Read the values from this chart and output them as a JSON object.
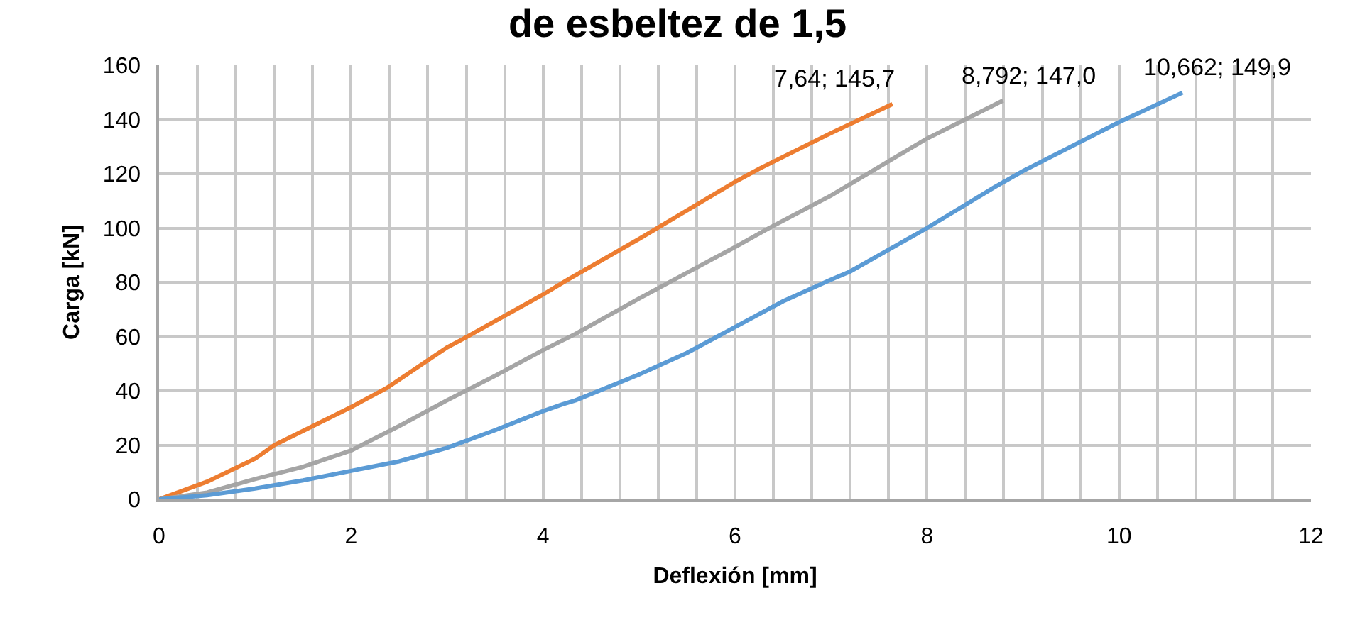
{
  "chart_data": {
    "type": "line",
    "title": "de esbeltez de 1,5",
    "xlabel": "Deflexión [mm]",
    "ylabel": "Carga [kN]",
    "xlim": [
      0,
      12
    ],
    "xticks": [
      0,
      2,
      4,
      6,
      8,
      10,
      12
    ],
    "ylim": [
      0,
      160
    ],
    "yticks": [
      0,
      20,
      40,
      60,
      80,
      100,
      120,
      140,
      160
    ],
    "grid": true,
    "marker": "none",
    "line_style": "solid",
    "series": [
      {
        "color": "#ed7d31",
        "x": [
          0,
          0.5,
          1,
          1.2,
          2,
          2.37,
          3,
          3.16,
          4,
          4.26,
          5,
          6,
          6.26,
          7,
          7.64
        ],
        "values": [
          0,
          6.5,
          15,
          20,
          34,
          41,
          56,
          59,
          75.5,
          81,
          96,
          117,
          122,
          135,
          145.7
        ]
      },
      {
        "color": "#a5a5a5",
        "x": [
          0,
          0.5,
          1,
          1.5,
          2,
          2.5,
          3,
          3.5,
          4,
          4.34,
          5,
          6,
          6.33,
          7,
          8,
          8.792
        ],
        "values": [
          0,
          2.5,
          7.5,
          12,
          18,
          27,
          36.5,
          45.5,
          55,
          61,
          74,
          93,
          99.5,
          112,
          133,
          147.0
        ]
      },
      {
        "color": "#5b9bd5",
        "x": [
          0,
          0.5,
          1,
          1.5,
          2,
          2.5,
          3,
          3.5,
          4,
          4.2,
          4.34,
          5,
          5.5,
          6,
          6.5,
          7,
          7.2,
          8,
          8.7,
          9,
          10,
          10.662
        ],
        "values": [
          0,
          1.5,
          4,
          7,
          10.5,
          14,
          19,
          25.5,
          32.5,
          35,
          36.5,
          46,
          54,
          63.5,
          73,
          81,
          84,
          100,
          115,
          121,
          139,
          149.9
        ]
      }
    ],
    "annotations": [
      {
        "text": "7,64; 145,7",
        "x": 7.64,
        "y": 145.7
      },
      {
        "text": "8,792; 147,0",
        "x": 8.792,
        "y": 147.0
      },
      {
        "text": "10,662; 149,9",
        "x": 10.662,
        "y": 149.9
      }
    ]
  }
}
